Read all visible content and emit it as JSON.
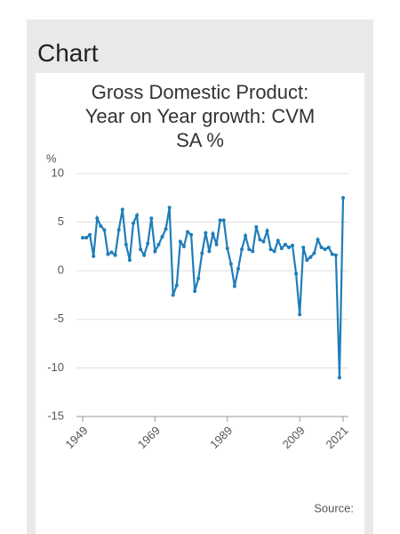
{
  "heading": "Chart",
  "source": "Source:",
  "chart_data": {
    "type": "line",
    "title": "Gross Domestic Product: Year on Year growth: CVM SA %",
    "y_label": "%",
    "x": [
      1949,
      1950,
      1951,
      1952,
      1953,
      1954,
      1955,
      1956,
      1957,
      1958,
      1959,
      1960,
      1961,
      1962,
      1963,
      1964,
      1965,
      1966,
      1967,
      1968,
      1969,
      1970,
      1971,
      1972,
      1973,
      1974,
      1975,
      1976,
      1977,
      1978,
      1979,
      1980,
      1981,
      1982,
      1983,
      1984,
      1985,
      1986,
      1987,
      1988,
      1989,
      1990,
      1991,
      1992,
      1993,
      1994,
      1995,
      1996,
      1997,
      1998,
      1999,
      2000,
      2001,
      2002,
      2003,
      2004,
      2005,
      2006,
      2007,
      2008,
      2009,
      2010,
      2011,
      2012,
      2013,
      2014,
      2015,
      2016,
      2017,
      2018,
      2019,
      2020,
      2021
    ],
    "values": [
      3.4,
      3.4,
      3.7,
      1.5,
      5.4,
      4.6,
      4.2,
      1.7,
      1.9,
      1.6,
      4.2,
      6.3,
      2.7,
      1.1,
      4.9,
      5.7,
      2.2,
      1.6,
      2.8,
      5.4,
      2.0,
      2.7,
      3.5,
      4.3,
      6.5,
      -2.5,
      -1.5,
      3.0,
      2.5,
      4.0,
      3.7,
      -2.1,
      -0.8,
      1.8,
      3.9,
      2.0,
      3.8,
      2.7,
      5.2,
      5.2,
      2.3,
      0.7,
      -1.6,
      0.2,
      2.2,
      3.6,
      2.2,
      2.0,
      4.5,
      3.2,
      3.0,
      4.1,
      2.2,
      2.0,
      3.1,
      2.3,
      2.7,
      2.4,
      2.6,
      -0.3,
      -4.5,
      2.4,
      1.1,
      1.4,
      1.8,
      3.2,
      2.4,
      2.2,
      2.4,
      1.7,
      1.6,
      -11.0,
      7.5
    ],
    "color": "#1f7dba",
    "xlim": [
      1949,
      2021
    ],
    "xticks": [
      1949,
      1969,
      1989,
      2009,
      2021
    ],
    "ylim": [
      -15,
      10
    ],
    "yticks": [
      -15,
      -10,
      -5,
      0,
      5,
      10
    ],
    "grid": true
  }
}
